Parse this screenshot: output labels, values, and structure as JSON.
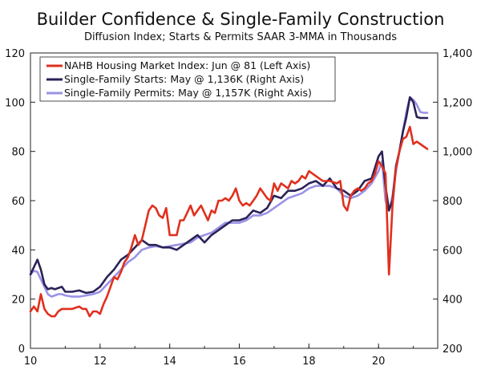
{
  "chart_data": {
    "type": "line",
    "title": "Builder Confidence & Single-Family Construction",
    "subtitle": "Diffusion Index; Starts & Permits SAAR 3-MMA in Thousands",
    "x_ticks": [
      "10",
      "12",
      "14",
      "16",
      "18",
      "20"
    ],
    "xlim": [
      2010,
      2021.7
    ],
    "left_axis": {
      "ticks": [
        "0",
        "20",
        "40",
        "60",
        "80",
        "100",
        "120"
      ],
      "ylim": [
        0,
        120
      ]
    },
    "right_axis": {
      "ticks": [
        "200",
        "400",
        "600",
        "800",
        "1,000",
        "1,200",
        "1,400"
      ],
      "ylim": [
        200,
        1400
      ]
    },
    "grid": false,
    "legend_position": "top-left",
    "series": [
      {
        "name": "NAHB Housing Market Index: Jun @ 81 (Left Axis)",
        "axis": "left",
        "color": "#e0301e",
        "x": [
          2010.0,
          2010.1,
          2010.2,
          2010.3,
          2010.4,
          2010.5,
          2010.6,
          2010.7,
          2010.8,
          2010.9,
          2011.0,
          2011.2,
          2011.4,
          2011.5,
          2011.6,
          2011.7,
          2011.8,
          2011.9,
          2012.0,
          2012.1,
          2012.2,
          2012.3,
          2012.4,
          2012.5,
          2012.6,
          2012.7,
          2012.8,
          2012.9,
          2013.0,
          2013.1,
          2013.2,
          2013.3,
          2013.4,
          2013.5,
          2013.6,
          2013.7,
          2013.8,
          2013.9,
          2014.0,
          2014.1,
          2014.2,
          2014.3,
          2014.4,
          2014.5,
          2014.6,
          2014.7,
          2014.8,
          2014.9,
          2015.0,
          2015.1,
          2015.2,
          2015.3,
          2015.4,
          2015.5,
          2015.6,
          2015.7,
          2015.8,
          2015.9,
          2016.0,
          2016.1,
          2016.2,
          2016.3,
          2016.4,
          2016.5,
          2016.6,
          2016.7,
          2016.8,
          2016.9,
          2017.0,
          2017.1,
          2017.2,
          2017.3,
          2017.4,
          2017.5,
          2017.6,
          2017.7,
          2017.8,
          2017.9,
          2018.0,
          2018.2,
          2018.4,
          2018.6,
          2018.8,
          2018.9,
          2019.0,
          2019.1,
          2019.2,
          2019.3,
          2019.4,
          2019.5,
          2019.6,
          2019.7,
          2019.8,
          2019.9,
          2020.0,
          2020.1,
          2020.2,
          2020.3,
          2020.4,
          2020.5,
          2020.6,
          2020.7,
          2020.8,
          2020.9,
          2021.0,
          2021.1,
          2021.2,
          2021.3,
          2021.4
        ],
        "values": [
          15,
          17,
          15,
          22,
          16,
          14,
          13,
          13,
          15,
          16,
          16,
          16,
          17,
          16,
          16,
          13,
          15,
          15,
          14,
          18,
          21,
          25,
          29,
          28,
          31,
          35,
          37,
          41,
          46,
          42,
          44,
          50,
          56,
          58,
          57,
          54,
          53,
          57,
          46,
          46,
          46,
          52,
          52,
          55,
          58,
          54,
          56,
          58,
          55,
          52,
          56,
          55,
          60,
          60,
          61,
          60,
          62,
          65,
          60,
          58,
          59,
          58,
          60,
          62,
          65,
          63,
          61,
          60,
          67,
          64,
          67,
          66,
          65,
          68,
          67,
          68,
          70,
          69,
          72,
          70,
          68,
          68,
          67,
          68,
          58,
          56,
          62,
          64,
          65,
          64,
          65,
          67,
          68,
          71,
          76,
          74,
          71,
          30,
          58,
          73,
          80,
          85,
          86,
          90,
          83,
          84,
          83,
          82,
          81
        ]
      },
      {
        "name": "Single-Family Starts: May @ 1,136K (Right Axis)",
        "axis": "right",
        "color": "#2a2257",
        "x": [
          2010.0,
          2010.1,
          2010.2,
          2010.3,
          2010.4,
          2010.5,
          2010.6,
          2010.7,
          2010.8,
          2010.9,
          2011.0,
          2011.2,
          2011.4,
          2011.6,
          2011.8,
          2012.0,
          2012.2,
          2012.4,
          2012.6,
          2012.8,
          2013.0,
          2013.2,
          2013.4,
          2013.6,
          2013.8,
          2014.0,
          2014.2,
          2014.4,
          2014.6,
          2014.8,
          2015.0,
          2015.2,
          2015.4,
          2015.6,
          2015.8,
          2016.0,
          2016.2,
          2016.4,
          2016.6,
          2016.8,
          2017.0,
          2017.2,
          2017.4,
          2017.6,
          2017.8,
          2018.0,
          2018.2,
          2018.4,
          2018.6,
          2018.8,
          2019.0,
          2019.2,
          2019.4,
          2019.6,
          2019.8,
          2020.0,
          2020.1,
          2020.2,
          2020.3,
          2020.4,
          2020.5,
          2020.6,
          2020.7,
          2020.8,
          2020.9,
          2021.0,
          2021.1,
          2021.2,
          2021.3,
          2021.4
        ],
        "values": [
          500,
          530,
          560,
          520,
          460,
          440,
          445,
          440,
          445,
          450,
          430,
          430,
          435,
          425,
          430,
          450,
          490,
          520,
          560,
          580,
          610,
          640,
          620,
          620,
          610,
          610,
          600,
          620,
          640,
          660,
          630,
          660,
          680,
          700,
          720,
          720,
          730,
          760,
          750,
          770,
          820,
          810,
          840,
          840,
          850,
          870,
          880,
          860,
          890,
          850,
          840,
          820,
          840,
          880,
          890,
          980,
          1000,
          860,
          760,
          800,
          940,
          1000,
          1080,
          1140,
          1220,
          1200,
          1140,
          1136,
          1136,
          1136
        ]
      },
      {
        "name": "Single-Family Permits: May @ 1,157K (Right Axis)",
        "axis": "right",
        "color": "#9a93e6",
        "x": [
          2010.0,
          2010.1,
          2010.2,
          2010.3,
          2010.4,
          2010.5,
          2010.6,
          2010.7,
          2010.8,
          2010.9,
          2011.0,
          2011.2,
          2011.4,
          2011.6,
          2011.8,
          2012.0,
          2012.2,
          2012.4,
          2012.6,
          2012.8,
          2013.0,
          2013.2,
          2013.4,
          2013.6,
          2013.8,
          2014.0,
          2014.2,
          2014.4,
          2014.6,
          2014.8,
          2015.0,
          2015.2,
          2015.4,
          2015.6,
          2015.8,
          2016.0,
          2016.2,
          2016.4,
          2016.6,
          2016.8,
          2017.0,
          2017.2,
          2017.4,
          2017.6,
          2017.8,
          2018.0,
          2018.2,
          2018.4,
          2018.6,
          2018.8,
          2019.0,
          2019.2,
          2019.4,
          2019.6,
          2019.8,
          2020.0,
          2020.1,
          2020.2,
          2020.3,
          2020.4,
          2020.5,
          2020.6,
          2020.7,
          2020.8,
          2020.9,
          2021.0,
          2021.1,
          2021.2,
          2021.3,
          2021.4
        ],
        "values": [
          500,
          515,
          510,
          480,
          450,
          420,
          410,
          415,
          420,
          420,
          415,
          410,
          410,
          415,
          420,
          430,
          460,
          490,
          520,
          550,
          570,
          600,
          610,
          615,
          610,
          615,
          620,
          625,
          630,
          650,
          660,
          670,
          690,
          710,
          710,
          710,
          720,
          740,
          740,
          750,
          770,
          790,
          810,
          820,
          830,
          850,
          860,
          860,
          860,
          850,
          820,
          810,
          820,
          840,
          870,
          920,
          960,
          800,
          760,
          820,
          920,
          1000,
          1080,
          1160,
          1220,
          1210,
          1190,
          1160,
          1157,
          1157
        ]
      }
    ]
  }
}
